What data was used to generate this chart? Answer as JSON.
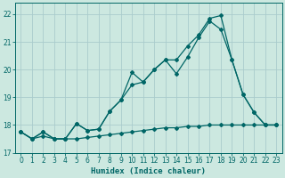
{
  "xlabel": "Humidex (Indice chaleur)",
  "bg_color": "#cce8e0",
  "grid_color": "#aacccc",
  "line_color": "#006666",
  "xlim": [
    -0.5,
    23.5
  ],
  "ylim": [
    17.0,
    22.4
  ],
  "yticks": [
    17,
    18,
    19,
    20,
    21,
    22
  ],
  "xticks": [
    0,
    1,
    2,
    3,
    4,
    5,
    6,
    7,
    8,
    9,
    10,
    11,
    12,
    13,
    14,
    15,
    16,
    17,
    18,
    19,
    20,
    21,
    22,
    23
  ],
  "line1_x": [
    0,
    1,
    2,
    3,
    4,
    5,
    6,
    7,
    8,
    9,
    10,
    11,
    12,
    13,
    14,
    15,
    16,
    17,
    18,
    19,
    20,
    21,
    22,
    23
  ],
  "line1_y": [
    17.75,
    17.5,
    17.75,
    17.5,
    17.5,
    18.05,
    17.8,
    17.85,
    18.5,
    18.9,
    19.9,
    19.55,
    20.0,
    20.35,
    20.35,
    20.85,
    21.25,
    21.85,
    21.95,
    20.35,
    19.1,
    18.45,
    18.0,
    18.0
  ],
  "line2_x": [
    0,
    1,
    2,
    3,
    4,
    5,
    6,
    7,
    8,
    9,
    10,
    11,
    12,
    13,
    14,
    15,
    16,
    17,
    18,
    19,
    20,
    21,
    22,
    23
  ],
  "line2_y": [
    17.75,
    17.5,
    17.75,
    17.5,
    17.5,
    18.05,
    17.8,
    17.85,
    18.5,
    18.9,
    19.45,
    19.55,
    20.0,
    20.35,
    19.85,
    20.45,
    21.15,
    21.75,
    21.45,
    20.35,
    19.1,
    18.45,
    18.0,
    18.0
  ],
  "line3_x": [
    0,
    1,
    2,
    3,
    4,
    5,
    6,
    7,
    8,
    9,
    10,
    11,
    12,
    13,
    14,
    15,
    16,
    17,
    18,
    19,
    20,
    21,
    22,
    23
  ],
  "line3_y": [
    17.75,
    17.5,
    17.6,
    17.5,
    17.5,
    17.5,
    17.55,
    17.6,
    17.65,
    17.7,
    17.75,
    17.8,
    17.85,
    17.9,
    17.9,
    17.95,
    17.95,
    18.0,
    18.0,
    18.0,
    18.0,
    18.0,
    18.0,
    18.0
  ]
}
